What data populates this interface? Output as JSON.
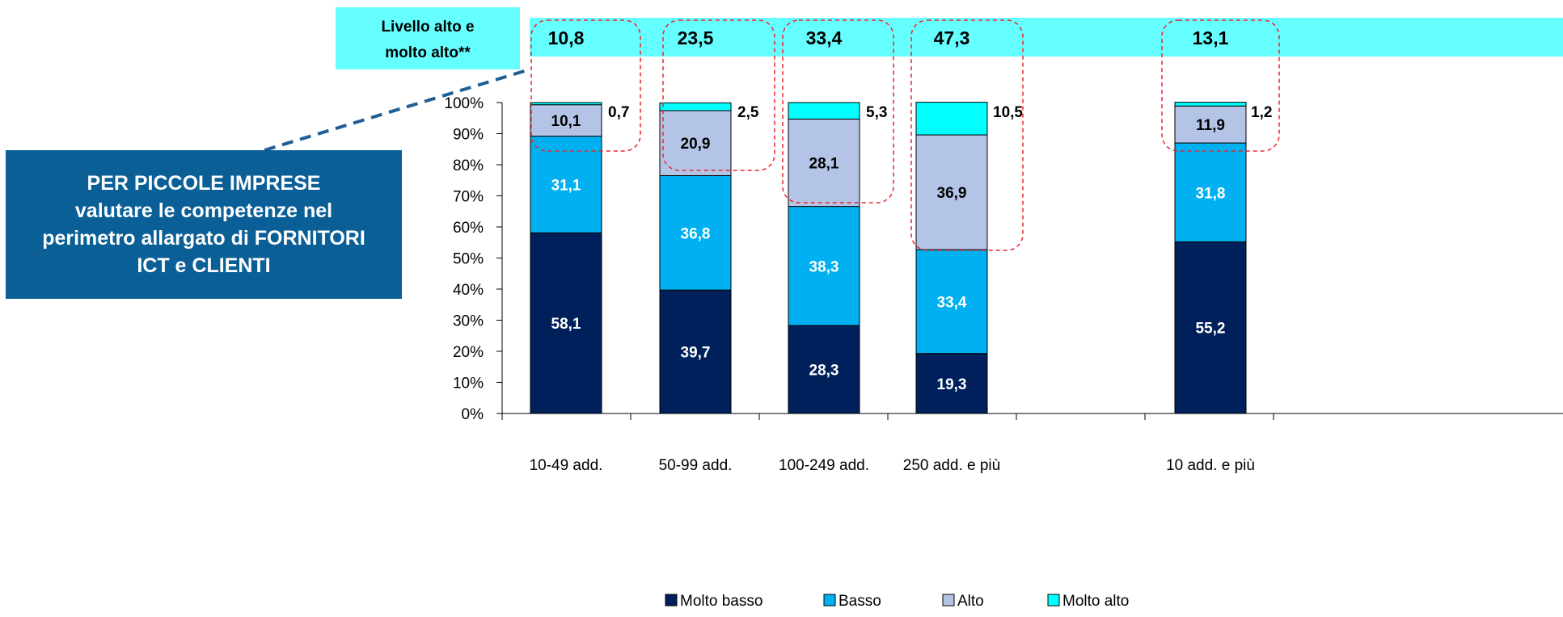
{
  "callout": {
    "text": "PER PICCOLE IMPRESE\nvalutare le competenze nel\nperimetro allargato di FORNITORI\nICT e CLIENTI"
  },
  "highlight": {
    "label_line1": "Livello alto e",
    "label_line2": "molto alto**",
    "values": [
      "10,8",
      "23,5",
      "33,4",
      "47,3",
      "13,1"
    ]
  },
  "colors": {
    "molto_basso": "#00205c",
    "basso": "#00b0f0",
    "alto": "#b4c4e6",
    "molto_alto": "#00ffff",
    "band": "#66ffff",
    "callout": "#0a5f96",
    "dashed_box": "#e8262c"
  },
  "chart_data": {
    "type": "bar",
    "stacked": true,
    "categories": [
      "10-49 add.",
      "50-99 add.",
      "100-249 add.",
      "250 add. e più",
      "",
      "10 add. e più"
    ],
    "series": [
      {
        "name": "Molto basso",
        "values": [
          58.1,
          39.7,
          28.3,
          19.3,
          null,
          55.2
        ],
        "labels": [
          "58,1",
          "39,7",
          "28,3",
          "19,3",
          "",
          "55,2"
        ]
      },
      {
        "name": "Basso",
        "values": [
          31.1,
          36.8,
          38.3,
          33.4,
          null,
          31.8
        ],
        "labels": [
          "31,1",
          "36,8",
          "38,3",
          "33,4",
          "",
          "31,8"
        ]
      },
      {
        "name": "Alto",
        "values": [
          10.1,
          20.9,
          28.1,
          36.9,
          null,
          11.9
        ],
        "labels": [
          "10,1",
          "20,9",
          "28,1",
          "36,9",
          "",
          "11,9"
        ]
      },
      {
        "name": "Molto alto",
        "values": [
          0.7,
          2.5,
          5.3,
          10.5,
          null,
          1.2
        ],
        "labels": [
          "0,7",
          "2,5",
          "5,3",
          "10,5",
          "",
          "1,2"
        ]
      }
    ],
    "yticks": [
      "0%",
      "10%",
      "20%",
      "30%",
      "40%",
      "50%",
      "60%",
      "70%",
      "80%",
      "90%",
      "100%"
    ],
    "ylim": [
      0,
      100
    ],
    "legend_position": "bottom",
    "grid": false
  }
}
